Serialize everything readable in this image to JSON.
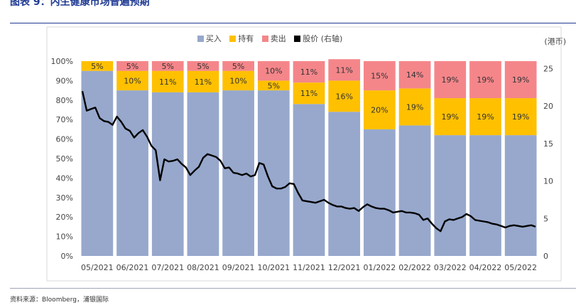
{
  "title": "图表 9：内生健康市场普遍预期",
  "source": "资料来源：Bloomberg，浦银国际",
  "unit": "(港币)",
  "colors": {
    "buy": "#97a8cc",
    "hold": "#ffc000",
    "sell": "#f4868a",
    "price": "#000000"
  },
  "chart_data": {
    "type": "bar",
    "stacked": true,
    "categories": [
      "05/2021",
      "06/2021",
      "07/2021",
      "08/2021",
      "09/2021",
      "10/2021",
      "11/2021",
      "12/2021",
      "01/2022",
      "02/2022",
      "03/2022",
      "04/2022",
      "05/2022"
    ],
    "series": [
      {
        "name": "买入",
        "values": [
          95,
          85,
          84,
          84,
          85,
          85,
          78,
          74,
          65,
          67,
          62,
          62,
          62
        ],
        "labels": [
          "",
          "",
          "",
          "",
          "",
          "",
          "",
          "",
          "",
          "",
          "",
          "",
          ""
        ]
      },
      {
        "name": "持有",
        "values": [
          5,
          10,
          11,
          11,
          10,
          5,
          11,
          16,
          20,
          19,
          19,
          19,
          19
        ],
        "labels": [
          "5%",
          "10%",
          "11%",
          "11%",
          "10%",
          "5%",
          "11%",
          "16%",
          "20%",
          "19%",
          "19%",
          "19%",
          "19%"
        ]
      },
      {
        "name": "卖出",
        "values": [
          0,
          5,
          5,
          5,
          5,
          10,
          11,
          11,
          15,
          14,
          19,
          19,
          19
        ],
        "labels": [
          "",
          "5%",
          "5%",
          "5%",
          "5%",
          "10%",
          "11%",
          "11%",
          "15%",
          "14%",
          "19%",
          "19%",
          "19%"
        ]
      }
    ],
    "line_series": {
      "name": "股价 (右轴)",
      "axis": "right",
      "values": [
        22.0,
        19.4,
        19.6,
        19.8,
        18.4,
        18.0,
        17.9,
        17.5,
        18.6,
        17.9,
        17.0,
        16.7,
        15.8,
        16.4,
        16.8,
        15.9,
        14.7,
        14.1,
        10.1,
        12.9,
        12.6,
        12.7,
        12.9,
        12.3,
        11.8,
        10.8,
        11.4,
        11.9,
        13.1,
        13.6,
        13.4,
        13.2,
        12.7,
        11.7,
        11.8,
        11.1,
        11.0,
        10.8,
        11.0,
        10.6,
        10.8,
        12.4,
        12.2,
        10.6,
        9.3,
        9.0,
        9.0,
        9.2,
        9.7,
        9.6,
        8.4,
        7.4,
        7.3,
        7.2,
        7.1,
        7.3,
        7.5,
        7.1,
        6.8,
        6.6,
        6.6,
        6.4,
        6.3,
        6.4,
        6.0,
        6.5,
        6.9,
        6.6,
        6.4,
        6.3,
        6.3,
        6.1,
        5.8,
        5.9,
        6.0,
        5.8,
        5.8,
        5.7,
        5.5,
        4.8,
        5.0,
        4.3,
        3.7,
        3.3,
        4.6,
        4.9,
        4.8,
        5.0,
        5.2,
        5.6,
        5.3,
        4.8,
        4.7,
        4.6,
        4.5,
        4.3,
        4.2,
        4.0,
        3.8,
        4.0,
        4.1,
        4.0,
        3.9,
        4.0,
        4.1,
        3.9
      ]
    },
    "y_left": {
      "min": 0,
      "max": 100,
      "ticks": [
        "0%",
        "10%",
        "20%",
        "30%",
        "40%",
        "50%",
        "60%",
        "70%",
        "80%",
        "90%",
        "100%"
      ]
    },
    "y_right": {
      "min": 0,
      "max": 26,
      "ticks": [
        "0",
        "5",
        "10",
        "15",
        "20",
        "25"
      ]
    },
    "legend": [
      "买入",
      "持有",
      "卖出",
      "股价 (右轴)"
    ],
    "legend_position": "top"
  }
}
